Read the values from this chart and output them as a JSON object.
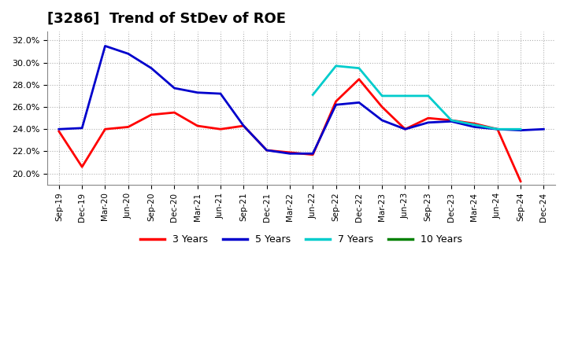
{
  "title": "[3286]  Trend of StDev of ROE",
  "ylim": [
    0.19,
    0.328
  ],
  "yticks": [
    0.2,
    0.22,
    0.24,
    0.26,
    0.28,
    0.3,
    0.32
  ],
  "background_color": "#ffffff",
  "plot_background": "#ffffff",
  "grid_color": "#b0b0b0",
  "title_fontsize": 13,
  "xtick_labels": [
    "Sep-19",
    "Dec-19",
    "Mar-20",
    "Jun-20",
    "Sep-20",
    "Dec-20",
    "Mar-21",
    "Jun-21",
    "Sep-21",
    "Dec-21",
    "Mar-22",
    "Jun-22",
    "Sep-22",
    "Dec-22",
    "Mar-23",
    "Jun-23",
    "Sep-23",
    "Dec-23",
    "Mar-24",
    "Jun-24",
    "Sep-24",
    "Dec-24"
  ],
  "series": [
    {
      "key": "3Y",
      "color": "#ff0000",
      "label": "3 Years",
      "indices": [
        0,
        1,
        2,
        3,
        4,
        5,
        6,
        7,
        8,
        9,
        10,
        11,
        12,
        13,
        14,
        15,
        16,
        17,
        18,
        19,
        20
      ],
      "values": [
        0.238,
        0.206,
        0.24,
        0.242,
        0.253,
        0.255,
        0.243,
        0.24,
        0.243,
        0.221,
        0.219,
        0.217,
        0.265,
        0.285,
        0.26,
        0.24,
        0.25,
        0.248,
        0.245,
        0.24,
        0.193
      ]
    },
    {
      "key": "5Y",
      "color": "#0000cc",
      "label": "5 Years",
      "indices": [
        0,
        1,
        2,
        3,
        4,
        5,
        6,
        7,
        8,
        9,
        10,
        11,
        12,
        13,
        14,
        15,
        16,
        17,
        18,
        19,
        20,
        21
      ],
      "values": [
        0.24,
        0.241,
        0.315,
        0.308,
        0.295,
        0.277,
        0.273,
        0.272,
        0.243,
        0.221,
        0.218,
        0.218,
        0.262,
        0.264,
        0.248,
        0.24,
        0.246,
        0.247,
        0.242,
        0.24,
        0.239,
        0.24
      ]
    },
    {
      "key": "7Y",
      "color": "#00cccc",
      "label": "7 Years",
      "indices": [
        11,
        12,
        13,
        14,
        15,
        16,
        17,
        18,
        19,
        20
      ],
      "values": [
        0.271,
        0.297,
        0.295,
        0.27,
        0.27,
        0.27,
        0.248,
        0.244,
        0.24,
        0.24
      ]
    },
    {
      "key": "10Y",
      "color": "#008000",
      "label": "10 Years",
      "indices": [],
      "values": []
    }
  ],
  "linewidth": 2.0
}
